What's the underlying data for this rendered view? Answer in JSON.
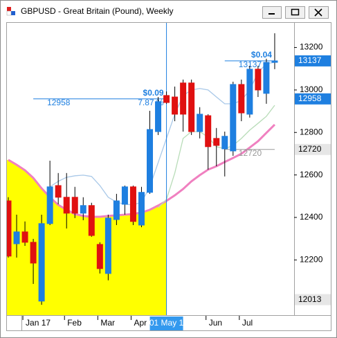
{
  "window_title": "GBPUSD - Great Britain (Pound), Weekly",
  "chart_data": {
    "type": "candlestick",
    "categories": [
      null,
      null,
      "Jan 17",
      null,
      null,
      null,
      null,
      "Feb",
      null,
      null,
      null,
      "Mar",
      null,
      null,
      null,
      "Apr",
      null,
      null,
      null,
      "01 May 1",
      null,
      null,
      null,
      null,
      "Jun",
      null,
      null,
      null,
      "Jul",
      null,
      null,
      null,
      null
    ],
    "cursor_index": 19,
    "open": [
      12478,
      12276,
      12332,
      12283,
      12006,
      12371,
      12550,
      12495,
      12495,
      12420,
      12456,
      12273,
      12136,
      12390,
      12462,
      12544,
      12364,
      12518,
      12804,
      12974,
      12967,
      13033,
      13033,
      12804,
      12879,
      12772,
      12723,
      12713,
      13026,
      12886,
      13098,
      12984,
      13130
    ],
    "high": [
      12495,
      12413,
      12381,
      12299,
      12413,
      12667,
      12609,
      12609,
      12544,
      12495,
      12469,
      12283,
      12413,
      12511,
      12550,
      12550,
      12544,
      12902,
      12967,
      12993,
      13016,
      13049,
      13049,
      12919,
      12886,
      12821,
      12804,
      13039,
      13049,
      13114,
      13114,
      13147,
      13267
    ],
    "low": [
      12211,
      12211,
      12266,
      12087,
      11989,
      12364,
      12462,
      12348,
      12397,
      12387,
      12309,
      12136,
      12104,
      12364,
      12413,
      12364,
      12354,
      12511,
      12788,
      12935,
      12853,
      12804,
      12788,
      12772,
      12625,
      12641,
      12593,
      12690,
      12853,
      12870,
      12967,
      12935,
      13098
    ],
    "close": [
      12218,
      12332,
      12283,
      12185,
      12371,
      12544,
      12495,
      12420,
      12420,
      12456,
      12315,
      12159,
      12397,
      12478,
      12544,
      12381,
      12518,
      12814,
      12945,
      12941,
      12886,
      12886,
      12804,
      12886,
      12733,
      12739,
      12782,
      13026,
      12892,
      13098,
      13000,
      13130,
      13137
    ],
    "up_color": "#1e7fe0",
    "down_color": "#e01010",
    "lines": [
      {
        "color": "#f080c0",
        "width": 3,
        "fill_to_cursor": "#ffff00",
        "values": [
          12671,
          12648,
          12622,
          12586,
          12537,
          12495,
          12459,
          12436,
          12416,
          12407,
          12403,
          12403,
          12407,
          12410,
          12413,
          12416,
          12423,
          12436,
          12456,
          12478,
          12504,
          12534,
          12570,
          12599,
          12625,
          12641,
          12661,
          12680,
          12700,
          12729,
          12759,
          12798,
          12837
        ]
      },
      {
        "color": "#a8c8e8",
        "width": 1.3,
        "values": [
          null,
          null,
          null,
          null,
          null,
          12544,
          12570,
          12589,
          12596,
          12599,
          12593,
          12550,
          12495,
          12472,
          12462,
          12459,
          12472,
          12544,
          12658,
          12772,
          12886,
          12974,
          13000,
          13007,
          13000,
          12967,
          12935,
          12935,
          12951,
          13000,
          13082,
          13124,
          13130
        ]
      },
      {
        "color": "#b8dcb8",
        "width": 1.3,
        "values": [
          null,
          null,
          null,
          null,
          null,
          null,
          null,
          null,
          null,
          null,
          null,
          null,
          null,
          null,
          null,
          null,
          null,
          null,
          12446,
          12485,
          12609,
          12772,
          12804,
          12804,
          12778,
          12733,
          12723,
          12739,
          12772,
          12811,
          12843,
          12876,
          12928
        ]
      }
    ],
    "annotations": [
      {
        "value": 12958,
        "change": "$0.09",
        "percent": "7.87 %",
        "from": 3,
        "to": 19,
        "color": "#1e7fe0"
      },
      {
        "value": 13137,
        "change": "$0.04",
        "from": 26,
        "to": 32,
        "color": "#1e7fe0"
      },
      {
        "value": 12720,
        "from": 26,
        "to": 32,
        "color": "#999999"
      }
    ],
    "price_markers": [
      {
        "value": 13137,
        "color": "#1e7fe0",
        "text_color": "#ffffff"
      },
      {
        "value": 12958,
        "color": "#1e7fe0",
        "text_color": "#ffffff"
      },
      {
        "value": 12720,
        "color": "#e6e6e6",
        "text_color": "#000000"
      },
      {
        "value": 12013,
        "color": "#e6e6e6",
        "text_color": "#000000"
      }
    ],
    "ylim": [
      11940,
      13316
    ],
    "yticks": [
      12200,
      12400,
      12600,
      12800,
      13000,
      13200
    ],
    "grid": false
  }
}
